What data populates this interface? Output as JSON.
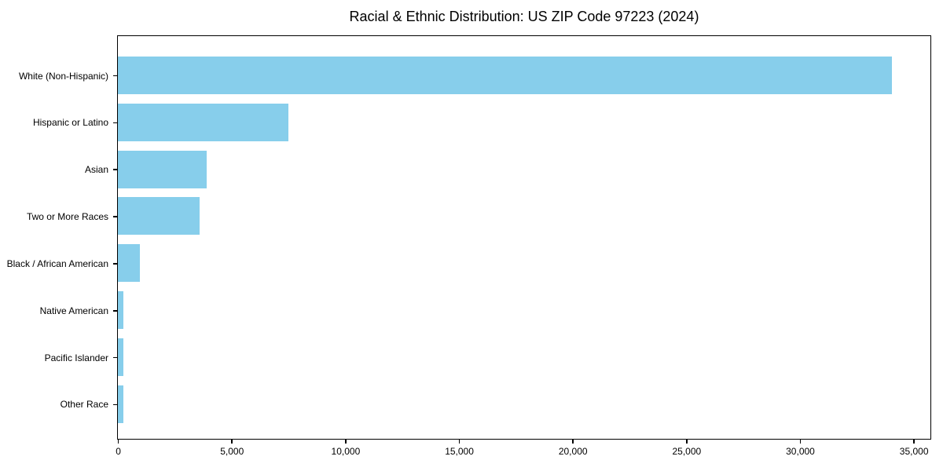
{
  "chart_data": {
    "type": "bar",
    "orientation": "horizontal",
    "title": "Racial & Ethnic Distribution: US ZIP Code 97223 (2024)",
    "categories": [
      "White (Non-Hispanic)",
      "Hispanic or Latino",
      "Asian",
      "Two or More Races",
      "Black / African American",
      "Native American",
      "Pacific Islander",
      "Other Race"
    ],
    "values": [
      34000,
      7500,
      3900,
      3600,
      950,
      240,
      240,
      240
    ],
    "xlabel": "",
    "ylabel": "",
    "xlim": [
      0,
      35700
    ],
    "xticks": [
      0,
      5000,
      10000,
      15000,
      20000,
      25000,
      30000,
      35000
    ],
    "xtick_labels": [
      "0",
      "5,000",
      "10,000",
      "15,000",
      "20,000",
      "25,000",
      "30,000",
      "35,000"
    ],
    "bar_color": "#87CEEB",
    "axis_color": "#000000",
    "background_color": "#ffffff",
    "grid": false,
    "legend": null
  }
}
